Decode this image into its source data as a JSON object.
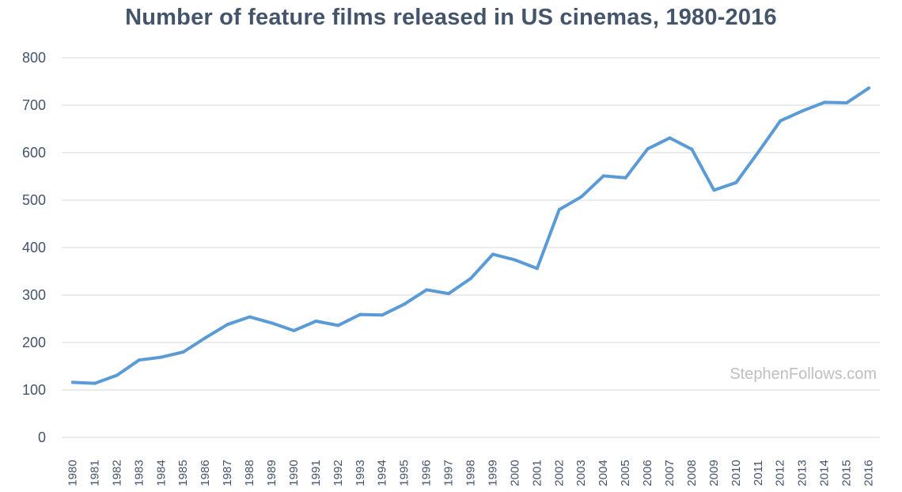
{
  "chart_data": {
    "type": "line",
    "title": "Number of feature films released in US cinemas, 1980-2016",
    "xlabel": "",
    "ylabel": "",
    "ylim": [
      0,
      800
    ],
    "yticks": [
      0,
      100,
      200,
      300,
      400,
      500,
      600,
      700,
      800
    ],
    "grid": "horizontal",
    "legend": "none",
    "categories": [
      "1980",
      "1981",
      "1982",
      "1983",
      "1984",
      "1985",
      "1986",
      "1987",
      "1988",
      "1989",
      "1990",
      "1991",
      "1992",
      "1993",
      "1994",
      "1995",
      "1996",
      "1997",
      "1998",
      "1999",
      "2000",
      "2001",
      "2002",
      "2003",
      "2004",
      "2005",
      "2006",
      "2007",
      "2008",
      "2009",
      "2010",
      "2011",
      "2012",
      "2013",
      "2014",
      "2015",
      "2016"
    ],
    "series": [
      {
        "values": [
          116,
          114,
          131,
          163,
          169,
          180,
          210,
          238,
          254,
          241,
          225,
          245,
          236,
          259,
          258,
          281,
          311,
          303,
          335,
          386,
          374,
          356,
          480,
          507,
          551,
          547,
          608,
          631,
          607,
          521,
          537,
          601,
          667,
          688,
          706,
          705,
          736
        ],
        "color": "#5b9bd5"
      }
    ],
    "watermark": "StephenFollows.com"
  },
  "colors": {
    "title": "#44546a",
    "axis_text": "#44546a",
    "grid": "#d9d9d9",
    "watermark": "#bfbfbf"
  }
}
